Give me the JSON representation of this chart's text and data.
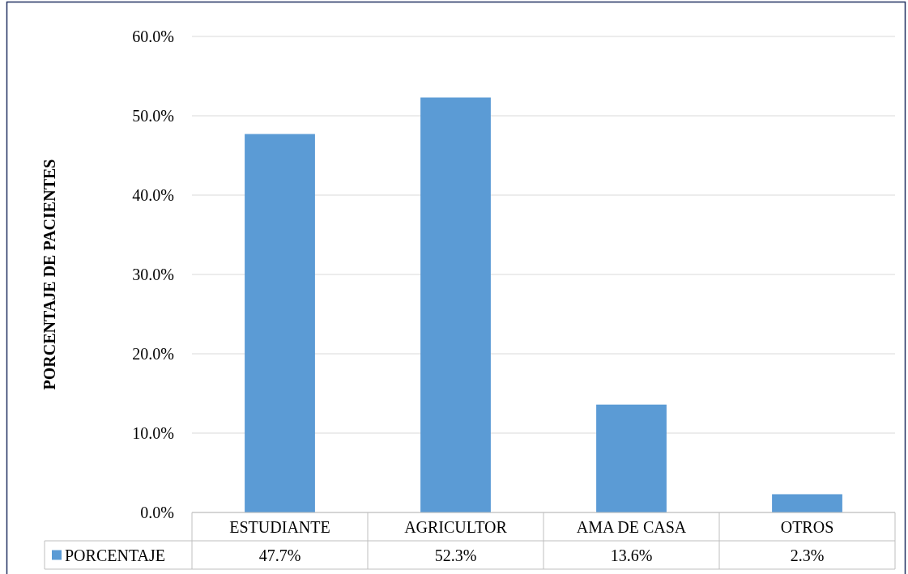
{
  "chart_data": {
    "type": "bar",
    "ylabel": "PORCENTAJE DE PACIENTES",
    "categories": [
      "ESTUDIANTE",
      "AGRICULTOR",
      "AMA DE CASA",
      "OTROS"
    ],
    "series": [
      {
        "name": "PORCENTAJE",
        "color": "#5b9bd5",
        "values": [
          47.7,
          52.3,
          13.6,
          2.3
        ],
        "value_labels": [
          "47.7%",
          "52.3%",
          "13.6%",
          "2.3%"
        ]
      }
    ],
    "ylim": [
      0,
      60
    ],
    "yticks": [
      {
        "value": 0,
        "label": "0.0%"
      },
      {
        "value": 10,
        "label": "10.0%"
      },
      {
        "value": 20,
        "label": "20.0%"
      },
      {
        "value": 30,
        "label": "30.0%"
      },
      {
        "value": 40,
        "label": "40.0%"
      },
      {
        "value": 50,
        "label": "50.0%"
      },
      {
        "value": 60,
        "label": "60.0%"
      }
    ],
    "grid": "y",
    "legend": "bottom"
  }
}
